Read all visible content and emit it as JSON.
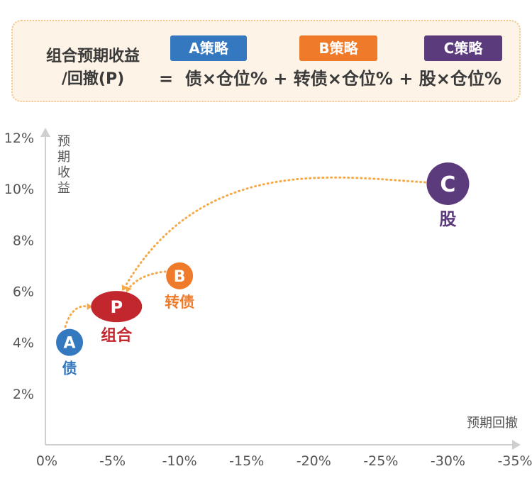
{
  "formula": {
    "left_line1": "组合预期收益",
    "left_line2": "/回撤(P)",
    "equals": "=",
    "text": "债×仓位% + 转债×仓位% + 股×仓位%",
    "badges": [
      {
        "label": "A策略",
        "color": "#3478bf"
      },
      {
        "label": "B策略",
        "color": "#ef7b2a"
      },
      {
        "label": "C策略",
        "color": "#5c3b7d"
      }
    ]
  },
  "chart_data": {
    "type": "scatter",
    "x_axis": {
      "label": "预期回撤",
      "ticks": [
        0,
        -5,
        -10,
        -15,
        -20,
        -25,
        -30,
        -35
      ],
      "tick_labels": [
        "0%",
        "-5%",
        "-10%",
        "-15%",
        "-20%",
        "-25%",
        "-30%",
        "-35%"
      ],
      "range": [
        0,
        -35
      ]
    },
    "y_axis": {
      "label": "预期收益",
      "ticks": [
        2,
        4,
        6,
        8,
        10,
        12
      ],
      "tick_labels": [
        "2%",
        "4%",
        "6%",
        "8%",
        "10%",
        "12%"
      ],
      "range": [
        0,
        12
      ]
    },
    "grid": false,
    "points": [
      {
        "letter": "A",
        "name": "债",
        "x": -1.8,
        "y": 4.0,
        "color": "#3478bf"
      },
      {
        "letter": "P",
        "name": "组合",
        "x": -5.3,
        "y": 5.4,
        "color": "#c1272d"
      },
      {
        "letter": "B",
        "name": "转债",
        "x": -10.0,
        "y": 6.6,
        "color": "#ef7b2a"
      },
      {
        "letter": "C",
        "name": "股",
        "x": -30.0,
        "y": 10.2,
        "color": "#5c3b7d"
      }
    ],
    "arrow_color": "#f5a948"
  }
}
